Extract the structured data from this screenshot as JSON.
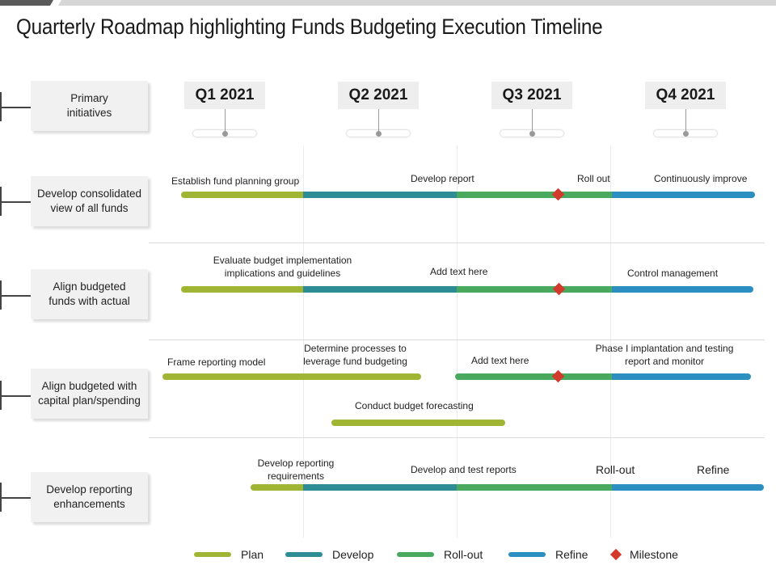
{
  "title": "Quarterly Roadmap highlighting Funds Budgeting Execution Timeline",
  "colors": {
    "plan": "#a1b534",
    "develop": "#2e8d94",
    "rollout": "#49a95e",
    "refine": "#2b8fc1",
    "milestone": "#d23a2b"
  },
  "header_label": "Primary initiatives",
  "quarters": [
    "Q1 2021",
    "Q2 2021",
    "Q3 2021",
    "Q4 2021"
  ],
  "rows": [
    {
      "label": "Develop consolidated view of all funds",
      "labels": [
        "Establish fund planning group",
        "Develop report",
        "Roll out",
        "Continuously improve"
      ]
    },
    {
      "label": "Align budgeted funds with actual",
      "labels": [
        "Evaluate budget implementation implications and guidelines",
        "Add text here",
        "Control management"
      ]
    },
    {
      "label": "Align budgeted with capital plan/spending",
      "labels": [
        "Frame reporting model",
        "Determine processes to leverage  fund budgeting",
        "Add text here",
        "Phase I implantation and testing report and monitor",
        "Conduct budget forecasting"
      ]
    },
    {
      "label": "Develop reporting enhancements",
      "labels": [
        "Develop reporting requirements",
        "Develop and test reports",
        "Roll-out",
        "Refine"
      ]
    }
  ],
  "legend": [
    {
      "label": "Plan",
      "icon": "line",
      "color": "#a1b534"
    },
    {
      "label": "Develop",
      "icon": "line",
      "color": "#2e8d94"
    },
    {
      "label": "Roll-out",
      "icon": "line",
      "color": "#49a95e"
    },
    {
      "label": "Refine",
      "icon": "line",
      "color": "#2b8fc1"
    },
    {
      "label": "Milestone",
      "icon": "diamond",
      "color": "#d23a2b"
    }
  ]
}
